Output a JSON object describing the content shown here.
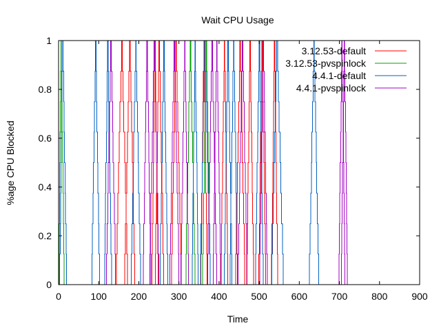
{
  "chart_data": {
    "type": "line",
    "title": "Wait CPU Usage",
    "xlabel": "Time",
    "ylabel": "%age CPU Blocked",
    "xlim": [
      0,
      900
    ],
    "ylim": [
      0,
      1
    ],
    "xticks": [
      0,
      100,
      200,
      300,
      400,
      500,
      600,
      700,
      800,
      900
    ],
    "yticks": [
      0,
      0.2,
      0.4,
      0.6,
      0.8,
      1
    ],
    "xtick_labels": [
      "0",
      "100",
      "200",
      "300",
      "400",
      "500",
      "600",
      "700",
      "800",
      "900"
    ],
    "ytick_labels": [
      "0",
      "0.2",
      "0.4",
      "0.6",
      "0.8",
      "1"
    ],
    "grid": false,
    "legend_position": "top-right",
    "series": [
      {
        "name": "3.12.53-default",
        "color": "#ff0000",
        "spikes": [
          {
            "start": 142,
            "peak": 157,
            "end": 172
          },
          {
            "start": 163,
            "peak": 177,
            "end": 190
          },
          {
            "start": 232,
            "peak": 240,
            "end": 248
          },
          {
            "start": 240,
            "peak": 250,
            "end": 262
          },
          {
            "start": 280,
            "peak": 292,
            "end": 306
          },
          {
            "start": 354,
            "peak": 362,
            "end": 370
          },
          {
            "start": 404,
            "peak": 413,
            "end": 422
          },
          {
            "start": 440,
            "peak": 452,
            "end": 464
          },
          {
            "start": 468,
            "peak": 477,
            "end": 486
          },
          {
            "start": 498,
            "peak": 507,
            "end": 516
          },
          {
            "start": 530,
            "peak": 538,
            "end": 546
          }
        ]
      },
      {
        "name": "3.12.53-pvspinlock",
        "color": "#00a000",
        "spikes": [
          {
            "start": 0,
            "peak": 6,
            "end": 14
          },
          {
            "start": 316,
            "peak": 328,
            "end": 340
          },
          {
            "start": 358,
            "peak": 368,
            "end": 378
          }
        ]
      },
      {
        "name": "4.4.1-default",
        "color": "#0060c0",
        "spikes": [
          {
            "start": 2,
            "peak": 10,
            "end": 20
          },
          {
            "start": 82,
            "peak": 92,
            "end": 102
          },
          {
            "start": 114,
            "peak": 122,
            "end": 132
          },
          {
            "start": 180,
            "peak": 192,
            "end": 204
          },
          {
            "start": 252,
            "peak": 262,
            "end": 272
          },
          {
            "start": 332,
            "peak": 340,
            "end": 348
          },
          {
            "start": 352,
            "peak": 364,
            "end": 378
          },
          {
            "start": 412,
            "peak": 422,
            "end": 432
          },
          {
            "start": 426,
            "peak": 436,
            "end": 446
          },
          {
            "start": 490,
            "peak": 500,
            "end": 510
          },
          {
            "start": 530,
            "peak": 544,
            "end": 560
          },
          {
            "start": 624,
            "peak": 636,
            "end": 648
          }
        ]
      },
      {
        "name": "4.4.1-pvspinlock",
        "color": "#a000c0",
        "spikes": [
          {
            "start": 118,
            "peak": 130,
            "end": 142
          },
          {
            "start": 210,
            "peak": 220,
            "end": 230
          },
          {
            "start": 226,
            "peak": 238,
            "end": 250
          },
          {
            "start": 276,
            "peak": 288,
            "end": 300
          },
          {
            "start": 304,
            "peak": 314,
            "end": 324
          },
          {
            "start": 370,
            "peak": 382,
            "end": 394
          },
          {
            "start": 384,
            "peak": 394,
            "end": 404
          },
          {
            "start": 446,
            "peak": 458,
            "end": 470
          },
          {
            "start": 500,
            "peak": 510,
            "end": 520
          },
          {
            "start": 698,
            "peak": 706,
            "end": 714
          },
          {
            "start": 704,
            "peak": 712,
            "end": 720
          }
        ]
      }
    ]
  }
}
